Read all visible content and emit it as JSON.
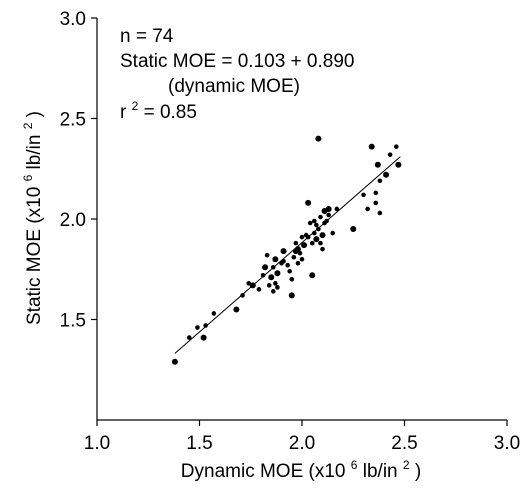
{
  "chart_data": {
    "type": "scatter",
    "title": "",
    "xlabel": {
      "prefix": "Dynamic MOE (x10",
      "sup1": "6",
      "mid": " lb/in",
      "sup2": "2",
      "suffix": ")"
    },
    "ylabel": {
      "prefix": "Static MOE (x10",
      "sup1": "6",
      "mid": " lb/in",
      "sup2": "2",
      "suffix": ")"
    },
    "xlim": [
      1.0,
      3.0
    ],
    "ylim": [
      1.0,
      3.0
    ],
    "xticks": [
      1.0,
      1.5,
      2.0,
      2.5,
      3.0
    ],
    "xtick_labels": [
      "1.0",
      "1.5",
      "2.0",
      "2.5",
      "3.0"
    ],
    "yticks": [
      1.5,
      2.0,
      2.5,
      3.0
    ],
    "ytick_labels": [
      "1.5",
      "2.0",
      "2.5",
      "3.0"
    ],
    "grid": false,
    "annotations": {
      "n": "n = 74",
      "equation": "Static MOE = 0.103 + 0.890",
      "equation_cont": "(dynamic MOE)",
      "r2_prefix": "r",
      "r2_sup": "2",
      "r2_suffix": " = 0.85"
    },
    "fit": {
      "intercept": 0.103,
      "slope": 0.89,
      "x_range": [
        1.38,
        2.48
      ]
    },
    "points": [
      [
        1.38,
        1.29
      ],
      [
        1.45,
        1.41
      ],
      [
        1.49,
        1.46
      ],
      [
        1.52,
        1.41
      ],
      [
        1.53,
        1.47
      ],
      [
        1.57,
        1.53
      ],
      [
        1.68,
        1.55
      ],
      [
        1.71,
        1.62
      ],
      [
        1.74,
        1.68
      ],
      [
        1.76,
        1.67
      ],
      [
        1.79,
        1.65
      ],
      [
        1.81,
        1.72
      ],
      [
        1.82,
        1.76
      ],
      [
        1.83,
        1.82
      ],
      [
        1.84,
        1.67
      ],
      [
        1.85,
        1.71
      ],
      [
        1.86,
        1.64
      ],
      [
        1.86,
        1.76
      ],
      [
        1.87,
        1.8
      ],
      [
        1.87,
        1.68
      ],
      [
        1.88,
        1.66
      ],
      [
        1.88,
        1.73
      ],
      [
        1.9,
        1.78
      ],
      [
        1.91,
        1.79
      ],
      [
        1.91,
        1.84
      ],
      [
        1.93,
        1.77
      ],
      [
        1.94,
        1.74
      ],
      [
        1.95,
        1.62
      ],
      [
        1.95,
        1.7
      ],
      [
        1.96,
        1.81
      ],
      [
        1.97,
        1.84
      ],
      [
        1.97,
        1.88
      ],
      [
        1.98,
        1.78
      ],
      [
        1.98,
        1.85
      ],
      [
        1.99,
        1.83
      ],
      [
        2.0,
        1.8
      ],
      [
        2.01,
        1.87
      ],
      [
        2.02,
        1.92
      ],
      [
        2.03,
        1.91
      ],
      [
        2.03,
        2.08
      ],
      [
        2.04,
        1.98
      ],
      [
        2.05,
        1.88
      ],
      [
        2.05,
        1.72
      ],
      [
        2.06,
        1.93
      ],
      [
        2.06,
        1.99
      ],
      [
        2.07,
        1.9
      ],
      [
        2.07,
        1.97
      ],
      [
        2.08,
        1.95
      ],
      [
        2.08,
        2.4
      ],
      [
        2.09,
        1.88
      ],
      [
        2.09,
        2.01
      ],
      [
        2.1,
        1.92
      ],
      [
        2.1,
        1.85
      ],
      [
        2.11,
        1.98
      ],
      [
        2.11,
        2.04
      ],
      [
        2.12,
        1.99
      ],
      [
        2.13,
        2.02
      ],
      [
        2.13,
        2.05
      ],
      [
        2.15,
        1.93
      ],
      [
        2.17,
        2.05
      ],
      [
        2.25,
        1.95
      ],
      [
        2.3,
        2.12
      ],
      [
        2.32,
        2.05
      ],
      [
        2.34,
        2.36
      ],
      [
        2.36,
        2.08
      ],
      [
        2.36,
        2.13
      ],
      [
        2.37,
        2.27
      ],
      [
        2.38,
        2.03
      ],
      [
        2.38,
        2.19
      ],
      [
        2.41,
        2.22
      ],
      [
        2.43,
        2.32
      ],
      [
        2.46,
        2.36
      ],
      [
        2.47,
        2.27
      ],
      [
        2.0,
        1.91
      ]
    ],
    "point_color": "#000000"
  }
}
